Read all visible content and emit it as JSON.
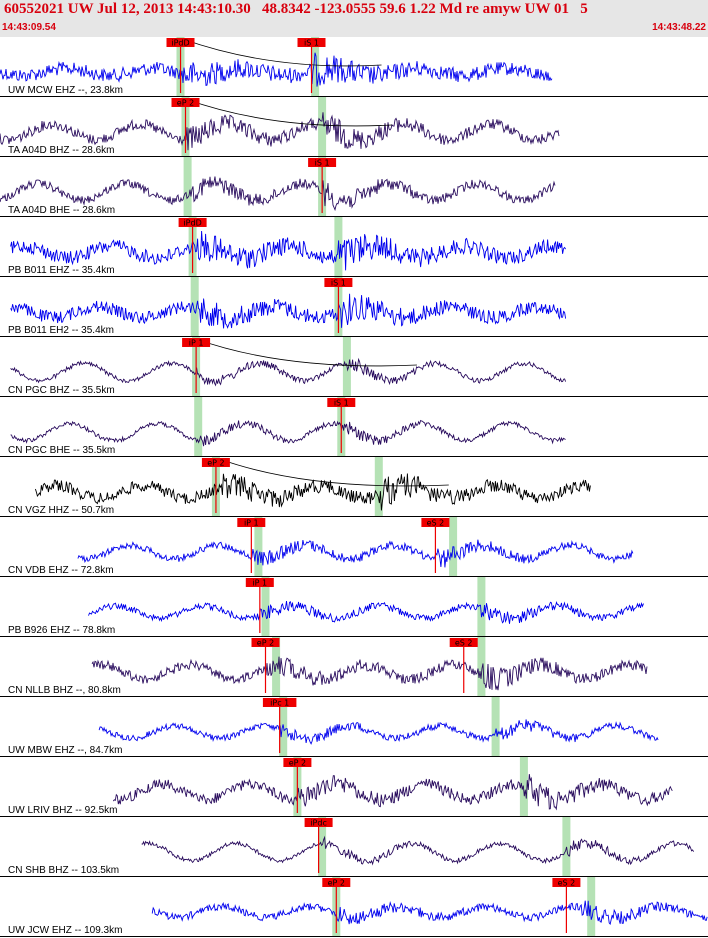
{
  "header": {
    "title": "60552021 UW Jul 12, 2013 14:43:10.30   48.8342 -123.0555 59.6 1.22 Md re amyw UW 01   5",
    "start_time": "14:43:09.54",
    "end_time": "14:43:48.22"
  },
  "colors": {
    "blue_trace": "#0000ee",
    "purple_trace": "#2a0d5e",
    "black_trace": "#000000",
    "pick_flag": "#ee0000",
    "window_band": "#b5e2b5",
    "separator": "#000000",
    "header_text": "#d8000e"
  },
  "traces": [
    {
      "label": "UW MCW EHZ --, 23.8km",
      "color": "blue",
      "amp": 0.14,
      "start": 0.0,
      "end": 0.78,
      "noise": 0.55,
      "p_arrival": 0.258,
      "s_arrival": 0.44,
      "bands": [
        0.255,
        0.445
      ],
      "picks": [
        {
          "label": "iPdD",
          "t": 0.255
        },
        {
          "label": "iS 1",
          "t": 0.44
        }
      ],
      "coda": true
    },
    {
      "label": "TA A04D BHZ -- 28.6km",
      "color": "purple",
      "amp": 0.22,
      "start": 0.0,
      "end": 0.79,
      "noise": 0.35,
      "p_arrival": 0.262,
      "s_arrival": 0.455,
      "bands": [
        0.262,
        0.455
      ],
      "picks": [
        {
          "label": "eP 2",
          "t": 0.262
        }
      ],
      "coda": true
    },
    {
      "label": "TA A04D BHE -- 28.6km",
      "color": "purple",
      "amp": 0.22,
      "start": 0.0,
      "end": 0.785,
      "noise": 0.3,
      "p_arrival": 0.27,
      "s_arrival": 0.455,
      "bands": [
        0.265,
        0.455
      ],
      "picks": [
        {
          "label": "iS 1",
          "t": 0.455
        }
      ],
      "coda": false
    },
    {
      "label": "PB B011 EHZ -- 35.4km",
      "color": "blue",
      "amp": 0.2,
      "start": 0.015,
      "end": 0.8,
      "noise": 0.45,
      "p_arrival": 0.278,
      "s_arrival": 0.478,
      "bands": [
        0.272,
        0.478
      ],
      "picks": [
        {
          "label": "iPdD",
          "t": 0.272
        }
      ],
      "coda": false
    },
    {
      "label": "PB B011 EH2 -- 35.4km",
      "color": "blue",
      "amp": 0.18,
      "start": 0.015,
      "end": 0.8,
      "noise": 0.45,
      "p_arrival": 0.278,
      "s_arrival": 0.478,
      "bands": [
        0.275,
        0.478
      ],
      "picks": [
        {
          "label": "iS 1",
          "t": 0.478
        }
      ],
      "coda": false
    },
    {
      "label": "CN PGC BHZ -- 35.5km",
      "color": "purple",
      "amp": 0.2,
      "start": 0.015,
      "end": 0.8,
      "noise": 0.2,
      "p_arrival": 0.277,
      "s_arrival": 0.49,
      "bands": [
        0.277,
        0.49
      ],
      "picks": [
        {
          "label": "iP 1",
          "t": 0.277
        }
      ],
      "coda": true
    },
    {
      "label": "CN PGC BHE -- 35.5km",
      "color": "purple",
      "amp": 0.2,
      "start": 0.015,
      "end": 0.8,
      "noise": 0.2,
      "p_arrival": 0.28,
      "s_arrival": 0.482,
      "bands": [
        0.28,
        0.482
      ],
      "picks": [
        {
          "label": "iS 1",
          "t": 0.482
        }
      ],
      "coda": false
    },
    {
      "label": "CN VGZ HHZ -- 50.7km",
      "color": "black",
      "amp": 0.2,
      "start": 0.05,
      "end": 0.835,
      "noise": 0.4,
      "p_arrival": 0.31,
      "s_arrival": 0.535,
      "bands": [
        0.305,
        0.535
      ],
      "picks": [
        {
          "label": "eP 2",
          "t": 0.305
        }
      ],
      "coda": true
    },
    {
      "label": "CN VDB EHZ -- 72.8km",
      "color": "blue",
      "amp": 0.18,
      "start": 0.11,
      "end": 0.895,
      "noise": 0.3,
      "p_arrival": 0.355,
      "s_arrival": 0.615,
      "bands": [
        0.365,
        0.64
      ],
      "picks": [
        {
          "label": "iP 1",
          "t": 0.355
        },
        {
          "label": "eS 2",
          "t": 0.615
        }
      ],
      "coda": false
    },
    {
      "label": "PB B926 EHZ -- 78.8km",
      "color": "blue",
      "amp": 0.16,
      "start": 0.125,
      "end": 0.91,
      "noise": 0.3,
      "p_arrival": 0.367,
      "s_arrival": 0.68,
      "bands": [
        0.375,
        0.68
      ],
      "picks": [
        {
          "label": "iP 1",
          "t": 0.367
        }
      ],
      "coda": false
    },
    {
      "label": "CN NLLB BHZ --, 80.8km",
      "color": "purple",
      "amp": 0.2,
      "start": 0.13,
      "end": 0.915,
      "noise": 0.35,
      "p_arrival": 0.375,
      "s_arrival": 0.68,
      "bands": [
        0.39,
        0.68
      ],
      "picks": [
        {
          "label": "eP 2",
          "t": 0.375
        },
        {
          "label": "eS 2",
          "t": 0.655
        }
      ],
      "coda": false
    },
    {
      "label": "UW MBW EHZ --, 84.7km",
      "color": "blue",
      "amp": 0.16,
      "start": 0.14,
      "end": 0.93,
      "noise": 0.3,
      "p_arrival": 0.395,
      "s_arrival": 0.7,
      "bands": [
        0.4,
        0.7
      ],
      "picks": [
        {
          "label": "iPc 1",
          "t": 0.395
        }
      ],
      "coda": false
    },
    {
      "label": "UW LRIV BHZ -- 92.5km",
      "color": "purple",
      "amp": 0.22,
      "start": 0.16,
      "end": 0.95,
      "noise": 0.35,
      "p_arrival": 0.42,
      "s_arrival": 0.74,
      "bands": [
        0.42,
        0.74
      ],
      "picks": [
        {
          "label": "eP 2",
          "t": 0.42
        }
      ],
      "coda": false
    },
    {
      "label": "CN SHB BHZ -- 103.5km",
      "color": "purple",
      "amp": 0.2,
      "start": 0.2,
      "end": 0.98,
      "noise": 0.2,
      "p_arrival": 0.455,
      "s_arrival": 0.8,
      "bands": [
        0.455,
        0.8
      ],
      "picks": [
        {
          "label": "iPdc",
          "t": 0.45
        }
      ],
      "coda": false
    },
    {
      "label": "UW JCW EHZ -- 109.3km",
      "color": "blue",
      "amp": 0.15,
      "start": 0.215,
      "end": 1.0,
      "noise": 0.35,
      "p_arrival": 0.475,
      "s_arrival": 0.82,
      "bands": [
        0.475,
        0.835
      ],
      "picks": [
        {
          "label": "eP 2",
          "t": 0.475
        },
        {
          "label": "eS 2",
          "t": 0.8
        }
      ],
      "coda": false
    }
  ]
}
